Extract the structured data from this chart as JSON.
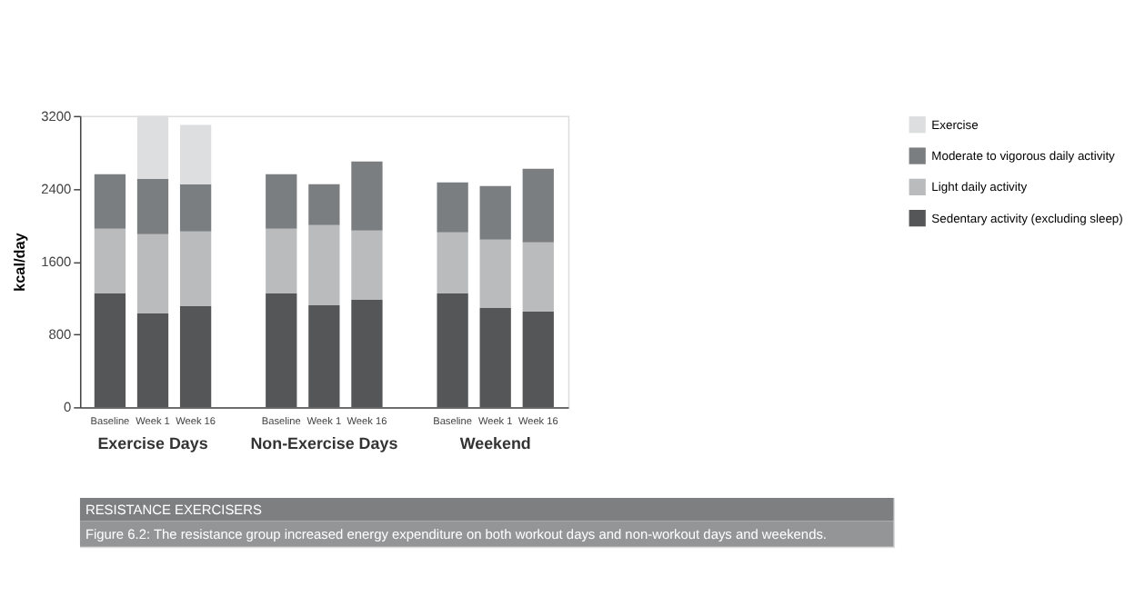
{
  "chart_data": {
    "type": "bar",
    "stacked": true,
    "title": "RESISTANCE EXERCISERS",
    "subtitle": "Figure 6.2: The resistance group increased energy expenditure on both workout days and non-workout days and weekends.",
    "ylabel": "kcal/day",
    "categories": [
      "Baseline",
      "Week 1",
      "Week 16",
      "Baseline",
      "Week 1",
      "Week 16",
      "Baseline",
      "Week 1",
      "Week 16"
    ],
    "annotations": [
      "Exercise Days",
      "Non-Exercise Days",
      "Weekend"
    ],
    "series": [
      {
        "name": "Sedentary activity (excluding sleep)",
        "color": "#545658",
        "values": [
          1250,
          1030,
          1110,
          1250,
          1120,
          1180,
          1250,
          1090,
          1050
        ]
      },
      {
        "name": "Light daily activity",
        "color": "#b9bbbd",
        "values": [
          710,
          870,
          820,
          710,
          880,
          760,
          670,
          750,
          760
        ]
      },
      {
        "name": "Moderate to vigorous daily activity",
        "color": "#7b7e80",
        "values": [
          600,
          610,
          520,
          600,
          450,
          760,
          550,
          590,
          810
        ]
      },
      {
        "name": "Exercise",
        "color": "#dcdedf",
        "values": [
          null,
          690,
          650,
          null,
          null,
          null,
          null,
          null,
          null
        ]
      }
    ],
    "ylim": [
      0,
      3200
    ],
    "yticks": [
      0,
      800,
      1600,
      2400,
      3200
    ],
    "grid": false,
    "legend": "top right"
  }
}
